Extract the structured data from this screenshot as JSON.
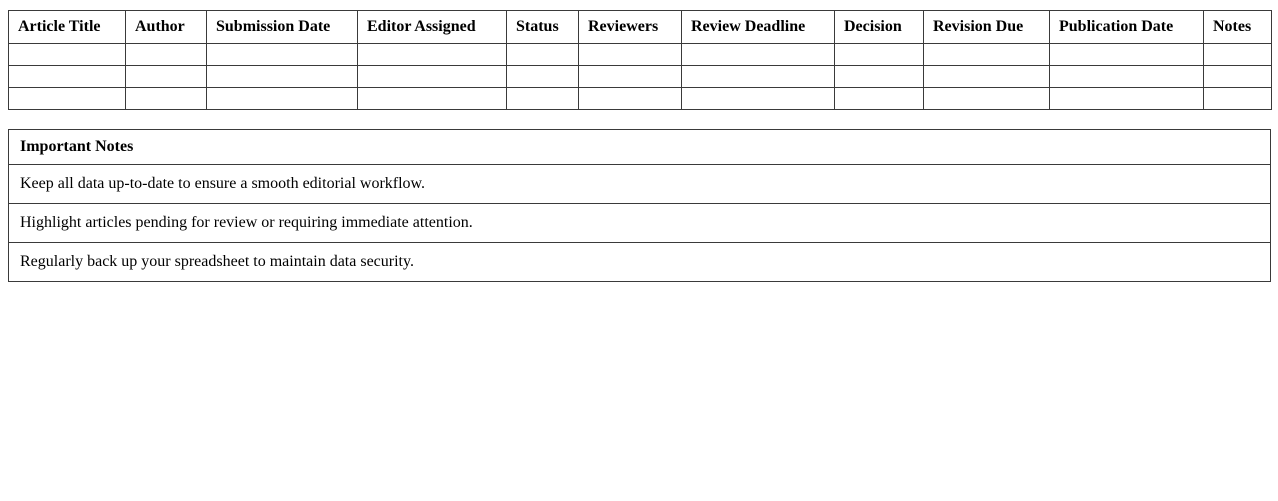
{
  "colors": {
    "background": "#ffffff",
    "border": "#3a3a3a",
    "text": "#000000"
  },
  "submissions_table": {
    "columns": [
      "Article Title",
      "Author",
      "Submission Date",
      "Editor Assigned",
      "Status",
      "Reviewers",
      "Review Deadline",
      "Decision",
      "Revision Due",
      "Publication Date",
      "Notes"
    ],
    "empty_row_count": 3
  },
  "notes_table": {
    "title": "Important Notes",
    "items": [
      "Keep all data up-to-date to ensure a smooth editorial workflow.",
      "Highlight articles pending for review or requiring immediate attention.",
      "Regularly back up your spreadsheet to maintain data security."
    ]
  }
}
